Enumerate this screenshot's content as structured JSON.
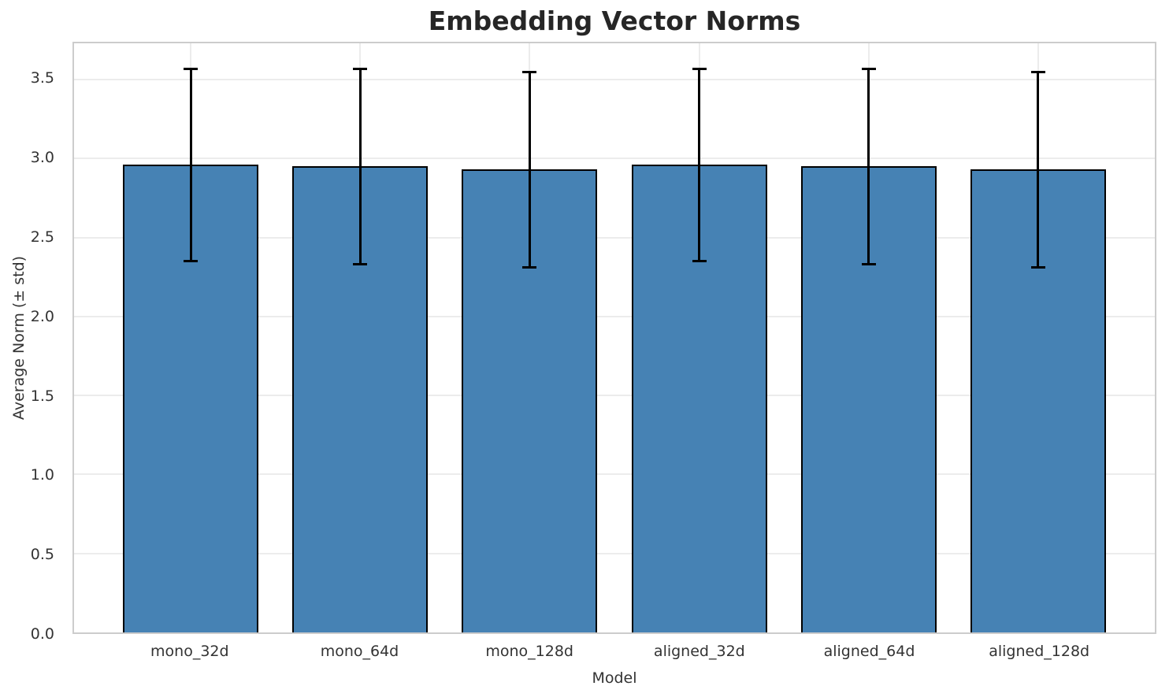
{
  "chart_data": {
    "type": "bar",
    "title": "Embedding Vector Norms",
    "xlabel": "Model",
    "ylabel": "Average Norm (± std)",
    "categories": [
      "mono_32d",
      "mono_64d",
      "mono_128d",
      "aligned_32d",
      "aligned_64d",
      "aligned_128d"
    ],
    "series": [
      {
        "name": "average_norm",
        "values": [
          2.96,
          2.95,
          2.93,
          2.96,
          2.95,
          2.93
        ],
        "std": [
          0.61,
          0.62,
          0.62,
          0.61,
          0.62,
          0.62
        ]
      }
    ],
    "error_bar_tops": [
      3.57,
      3.57,
      3.55,
      3.57,
      3.57,
      3.55
    ],
    "error_bar_bottoms": [
      2.35,
      2.33,
      2.31,
      2.35,
      2.33,
      2.31
    ],
    "yticks": [
      0.0,
      0.5,
      1.0,
      1.5,
      2.0,
      2.5,
      3.0,
      3.5
    ],
    "ytick_labels": [
      "0.0",
      "0.5",
      "1.0",
      "1.5",
      "2.0",
      "2.5",
      "3.0",
      "3.5"
    ],
    "ylim": [
      0,
      3.73
    ],
    "xlim": [
      -0.69,
      5.69
    ],
    "bar_width_units": 0.8,
    "grid": true,
    "legend": null,
    "colors": {
      "bar_fill": "#4682B4",
      "bar_edge": "#000000",
      "error_bar": "#000000",
      "gridline": "#ececec",
      "spine": "#cccccc",
      "title_text": "#262626",
      "tick_text": "#333333"
    }
  }
}
